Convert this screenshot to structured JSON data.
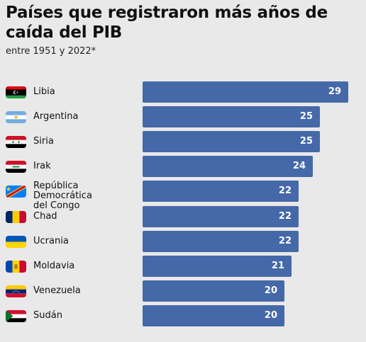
{
  "header": {
    "title": "Países que registraron más años de caída del PIB",
    "subtitle": "entre 1951 y 2022*"
  },
  "chart_data": {
    "type": "bar",
    "orientation": "horizontal",
    "title": "Países que registraron más años de caída del PIB",
    "subtitle": "entre 1951 y 2022*",
    "categories": [
      "Libia",
      "Argentina",
      "Siria",
      "Irak",
      "República Democrática del Congo",
      "Chad",
      "Ucrania",
      "Moldavia",
      "Venezuela",
      "Sudán"
    ],
    "category_lines": [
      [
        "Libia"
      ],
      [
        "Argentina"
      ],
      [
        "Siria"
      ],
      [
        "Irak"
      ],
      [
        "República Democrática",
        "del Congo"
      ],
      [
        "Chad"
      ],
      [
        "Ucrania"
      ],
      [
        "Moldavia"
      ],
      [
        "Venezuela"
      ],
      [
        "Sudán"
      ]
    ],
    "values": [
      29,
      25,
      25,
      24,
      22,
      22,
      22,
      21,
      20,
      20
    ],
    "flag_icons": [
      "libya-flag-icon",
      "argentina-flag-icon",
      "syria-flag-icon",
      "iraq-flag-icon",
      "dr-congo-flag-icon",
      "chad-flag-icon",
      "ukraine-flag-icon",
      "moldova-flag-icon",
      "venezuela-flag-icon",
      "sudan-flag-icon"
    ],
    "bar_color": "#4568a8",
    "background": "#e9e9e9",
    "xlim": [
      0,
      29
    ]
  }
}
